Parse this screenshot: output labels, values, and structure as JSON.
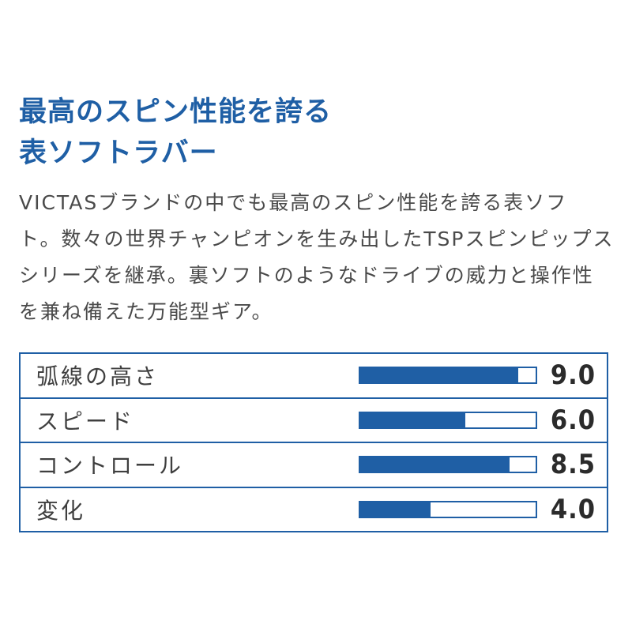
{
  "headline": {
    "line1": "最高のスピン性能を誇る",
    "line2": "表ソフトラバー"
  },
  "description": {
    "lines": [
      "VICTASブランドの中でも最高のスピン性能を誇る表ソフ",
      "ト。数々の世界チャンピオンを生み出したTSPスピンピップス",
      "シリーズを継承。裏ソフトのようなドライブの威力と操作性",
      "を兼ね備えた万能型ギア。"
    ]
  },
  "colors": {
    "accent": "#1f5fa5",
    "text": "#4a4a4a"
  },
  "ratings": [
    {
      "label": "弧線の高さ",
      "value": 9.0,
      "value_text": "9.0",
      "max": 10
    },
    {
      "label": "スピード",
      "value": 6.0,
      "value_text": "6.0",
      "max": 10
    },
    {
      "label": "コントロール",
      "value": 8.5,
      "value_text": "8.5",
      "max": 10
    },
    {
      "label": "変化",
      "value": 4.0,
      "value_text": "4.0",
      "max": 10
    }
  ]
}
